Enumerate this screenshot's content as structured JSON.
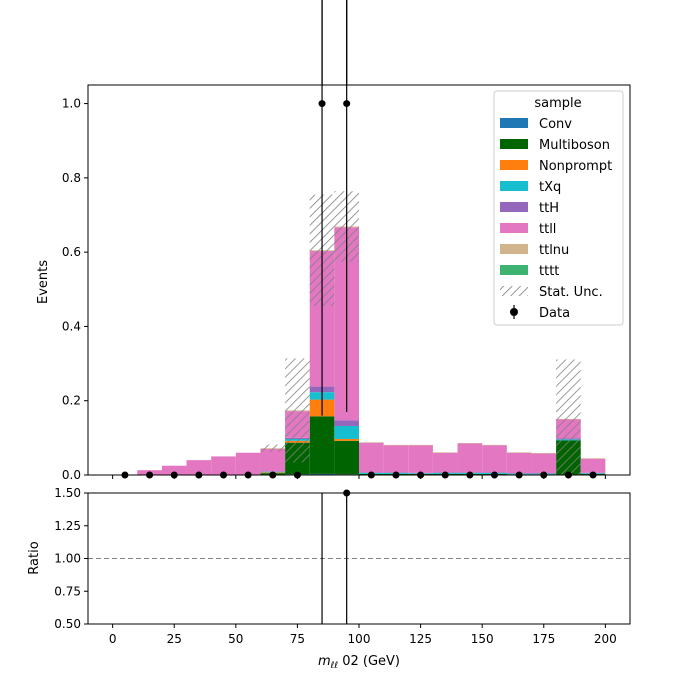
{
  "chart_data": [
    {
      "type": "stacked-histogram",
      "panel": "main",
      "bin_edges": [
        0,
        10,
        20,
        30,
        40,
        50,
        60,
        70,
        80,
        90,
        100,
        110,
        120,
        130,
        140,
        150,
        160,
        170,
        180,
        190,
        200
      ],
      "ylabel": "Events",
      "ylim": [
        0,
        1.05
      ],
      "yticks": [
        0.0,
        0.2,
        0.4,
        0.6,
        0.8,
        1.0
      ],
      "xticks": [
        0,
        25,
        50,
        75,
        100,
        125,
        150,
        175,
        200
      ],
      "xlim": [
        -10,
        210
      ],
      "series": [
        {
          "name": "Conv",
          "color": "#1f77b4",
          "values": [
            0,
            0,
            0,
            0,
            0,
            0,
            0,
            0.002,
            0.003,
            0.002,
            0,
            0,
            0,
            0,
            0,
            0,
            0,
            0,
            0,
            0
          ]
        },
        {
          "name": "Multiboson",
          "color": "#006400",
          "values": [
            0,
            0,
            0,
            0,
            0,
            0,
            0.005,
            0.085,
            0.155,
            0.09,
            0.003,
            0.003,
            0.003,
            0.003,
            0.003,
            0.003,
            0.002,
            0.002,
            0.093,
            0.003
          ]
        },
        {
          "name": "Nonprompt",
          "color": "#ff7f0e",
          "values": [
            0,
            0,
            0,
            0,
            0,
            0,
            0.002,
            0.005,
            0.045,
            0.005,
            0,
            0,
            0,
            0,
            0,
            0,
            0,
            0,
            0,
            0
          ]
        },
        {
          "name": "tXq",
          "color": "#17becf",
          "values": [
            0,
            0,
            0,
            0,
            0,
            0,
            0.002,
            0.005,
            0.02,
            0.035,
            0.003,
            0.003,
            0.002,
            0.003,
            0.003,
            0.003,
            0.002,
            0.002,
            0.003,
            0.002
          ]
        },
        {
          "name": "ttH",
          "color": "#9467bd",
          "values": [
            0,
            0,
            0,
            0,
            0,
            0,
            0.001,
            0.003,
            0.015,
            0.015,
            0.001,
            0.001,
            0.001,
            0.001,
            0.001,
            0.001,
            0.001,
            0.001,
            0.003,
            0.001
          ]
        },
        {
          "name": "ttll",
          "color": "#e377c2",
          "values": [
            0,
            0.013,
            0.025,
            0.04,
            0.05,
            0.06,
            0.06,
            0.072,
            0.365,
            0.52,
            0.08,
            0.073,
            0.074,
            0.053,
            0.078,
            0.073,
            0.055,
            0.053,
            0.051,
            0.038
          ]
        },
        {
          "name": "ttlnu",
          "color": "#d2b48c",
          "values": [
            0,
            0,
            0,
            0,
            0,
            0,
            0.002,
            0.002,
            0.002,
            0.002,
            0.001,
            0.001,
            0.001,
            0.001,
            0.001,
            0.001,
            0.001,
            0.001,
            0.001,
            0.001
          ]
        },
        {
          "name": "tttt",
          "color": "#3cb371",
          "values": [
            0,
            0,
            0,
            0,
            0,
            0,
            0,
            0,
            0,
            0,
            0,
            0,
            0,
            0,
            0,
            0,
            0,
            0,
            0,
            0
          ]
        }
      ],
      "stat_unc": [
        0,
        0,
        0,
        0,
        0,
        0,
        0.01,
        0.14,
        0.15,
        0.095,
        0,
        0,
        0,
        0,
        0,
        0,
        0,
        0,
        0.16,
        0
      ],
      "data": {
        "name": "Data",
        "x": [
          5,
          15,
          25,
          35,
          45,
          55,
          65,
          75,
          85,
          95,
          105,
          115,
          125,
          135,
          145,
          155,
          165,
          175,
          185,
          195
        ],
        "y": [
          0,
          0,
          0,
          0,
          0,
          0,
          0,
          0,
          1,
          1,
          0,
          0,
          0,
          0,
          0,
          0,
          0,
          0,
          0,
          0
        ],
        "yerr": [
          0,
          0,
          0,
          0,
          0,
          0,
          0,
          0,
          0.84,
          0.83,
          0,
          0,
          0,
          0,
          0,
          0,
          0,
          0,
          0,
          0
        ]
      },
      "legend": {
        "title": "sample",
        "placement": "upper right",
        "entries": [
          "Conv",
          "Multiboson",
          "Nonprompt",
          "tXq",
          "ttH",
          "ttll",
          "ttlnu",
          "tttt",
          "Stat. Unc.",
          "Data"
        ]
      }
    },
    {
      "type": "scatter",
      "panel": "ratio",
      "ylabel": "Ratio",
      "ylim": [
        0.5,
        1.5
      ],
      "yticks": [
        "0.50",
        "0.75",
        "1.00",
        "1.25",
        "1.50"
      ],
      "reference_line": 1.0,
      "points": [
        {
          "x": 95,
          "y": 1.5
        }
      ],
      "vertical_errors": [
        {
          "x": 85,
          "y": 1.5
        },
        {
          "x": 95,
          "y": 1.5
        }
      ]
    }
  ],
  "xlabel_prefix": "m",
  "xlabel_sub": "ℓℓ",
  "xlabel_suffix": " 02 (GeV)"
}
